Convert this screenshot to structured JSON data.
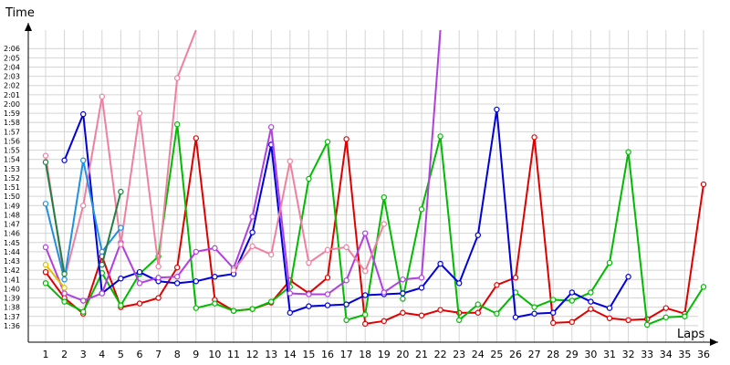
{
  "chart_data": {
    "type": "line",
    "xlabel": "Laps",
    "ylabel": "Time",
    "x": [
      1,
      2,
      3,
      4,
      5,
      6,
      7,
      8,
      9,
      10,
      11,
      12,
      13,
      14,
      15,
      16,
      17,
      18,
      19,
      20,
      21,
      22,
      23,
      24,
      25,
      26,
      27,
      28,
      29,
      30,
      31,
      32,
      33,
      34,
      35,
      36
    ],
    "y_ticks": [
      "1:36",
      "1:37",
      "1:38",
      "1:39",
      "1:40",
      "1:41",
      "1:42",
      "1:43",
      "1:44",
      "1:45",
      "1:46",
      "1:47",
      "1:48",
      "1:49",
      "1:50",
      "1:51",
      "1:52",
      "1:53",
      "1:54",
      "1:55",
      "1:56",
      "1:57",
      "1:58",
      "1:59",
      "2:00",
      "2:01",
      "2:02",
      "2:03",
      "2:04",
      "2:05",
      "2:06"
    ],
    "ylim_seconds": [
      95,
      128
    ],
    "grid": true,
    "series": [
      {
        "color": "#e00000",
        "values": [
          101.8,
          99.0,
          97.3,
          103.5,
          98.0,
          98.4,
          99.0,
          102.3,
          116.3,
          98.8,
          97.6,
          97.8,
          98.5,
          100.9,
          99.5,
          101.2,
          116.2,
          96.2,
          96.5,
          97.4,
          97.1,
          97.7,
          97.4,
          97.4,
          100.4,
          101.2,
          116.4,
          96.3,
          96.4,
          97.8,
          96.8,
          96.6,
          96.7,
          97.9,
          97.3,
          111.3
        ]
      },
      {
        "color": "#00bb00",
        "values": [
          100.6,
          98.6,
          97.5,
          101.7,
          98.2,
          101.6,
          103.5,
          117.8,
          97.9,
          98.4,
          97.6,
          97.8,
          98.6,
          100.2,
          111.9,
          115.9,
          96.6,
          97.2,
          109.9,
          98.9,
          108.6,
          116.5,
          96.6,
          98.3,
          97.3,
          99.6,
          98.0,
          98.8,
          98.7,
          99.6,
          102.8,
          114.8,
          96.1,
          96.9,
          97.0,
          100.2
        ]
      },
      {
        "color": "#0000dd",
        "values": [
          null,
          113.9,
          118.9,
          99.5,
          101.1,
          101.8,
          100.8,
          100.6,
          100.8,
          101.3,
          101.6,
          106.1,
          115.6,
          97.4,
          98.1,
          98.2,
          98.3,
          99.3,
          99.4,
          99.5,
          100.1,
          102.7,
          100.6,
          105.8,
          119.4,
          96.9,
          97.3,
          97.4,
          99.6,
          98.6,
          97.9,
          101.3,
          null,
          null,
          null,
          null
        ]
      },
      {
        "color": "#b040e0",
        "values": [
          104.5,
          99.5,
          98.7,
          99.5,
          105.0,
          100.6,
          101.2,
          101.3,
          104.0,
          104.4,
          102.2,
          107.8,
          117.5,
          99.5,
          99.4,
          99.4,
          100.9,
          106.0,
          99.6,
          101.0,
          101.2,
          128.0,
          null,
          null,
          null,
          null,
          null,
          null,
          null,
          null,
          null,
          null,
          null,
          null,
          null,
          null
        ]
      },
      {
        "color": "#f080a0",
        "values": [
          114.4,
          101.0,
          109.0,
          120.8,
          104.8,
          119.0,
          102.4,
          122.8,
          128.0,
          null,
          102.0,
          104.6,
          103.7,
          113.8,
          102.8,
          104.2,
          104.5,
          101.9,
          107.0,
          null,
          null,
          null,
          null,
          null,
          null,
          null,
          null,
          null,
          null,
          null,
          null,
          null,
          null,
          null,
          null,
          null
        ]
      },
      {
        "color": "#2090e0",
        "values": [
          109.2,
          101.0,
          113.9,
          104.0,
          106.6,
          null,
          null,
          null,
          null,
          null,
          null,
          null,
          null,
          null,
          null,
          null,
          null,
          null,
          null,
          null,
          null,
          null,
          null,
          null,
          null,
          null,
          null,
          null,
          null,
          null,
          null,
          null,
          null,
          null,
          null,
          null
        ]
      },
      {
        "color": "#208040",
        "values": [
          113.7,
          101.6,
          null,
          102.6,
          110.5,
          null,
          null,
          null,
          null,
          null,
          null,
          null,
          null,
          null,
          null,
          null,
          null,
          null,
          null,
          null,
          null,
          null,
          null,
          null,
          null,
          null,
          null,
          null,
          null,
          null,
          null,
          null,
          null,
          null,
          null,
          null
        ]
      },
      {
        "color": "#e0c000",
        "values": [
          102.6,
          100.1,
          null,
          null,
          null,
          null,
          null,
          null,
          null,
          null,
          null,
          null,
          null,
          null,
          null,
          null,
          null,
          null,
          null,
          null,
          null,
          null,
          null,
          null,
          null,
          null,
          null,
          null,
          null,
          null,
          null,
          null,
          null,
          null,
          null,
          null
        ]
      }
    ]
  }
}
